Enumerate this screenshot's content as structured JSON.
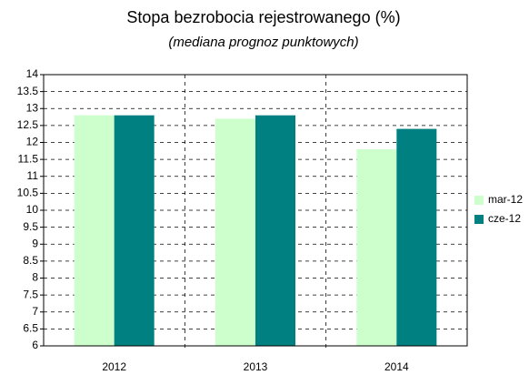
{
  "chart_data": {
    "type": "bar",
    "title": "Stopa bezrobocia rejestrowanego (%)",
    "subtitle": "(mediana prognoz punktowych)",
    "categories": [
      "2012",
      "2013",
      "2014"
    ],
    "series": [
      {
        "name": "mar-12",
        "color": "#ccffcc",
        "values": [
          12.8,
          12.7,
          11.8
        ]
      },
      {
        "name": "cze-12",
        "color": "#008080",
        "values": [
          12.8,
          12.8,
          12.4
        ]
      }
    ],
    "ylim": [
      6,
      14
    ],
    "yticks": [
      6,
      6.5,
      7,
      7.5,
      8,
      8.5,
      9,
      9.5,
      10,
      10.5,
      11,
      11.5,
      12,
      12.5,
      13,
      13.5,
      14
    ],
    "grid": true,
    "legend": "right"
  }
}
